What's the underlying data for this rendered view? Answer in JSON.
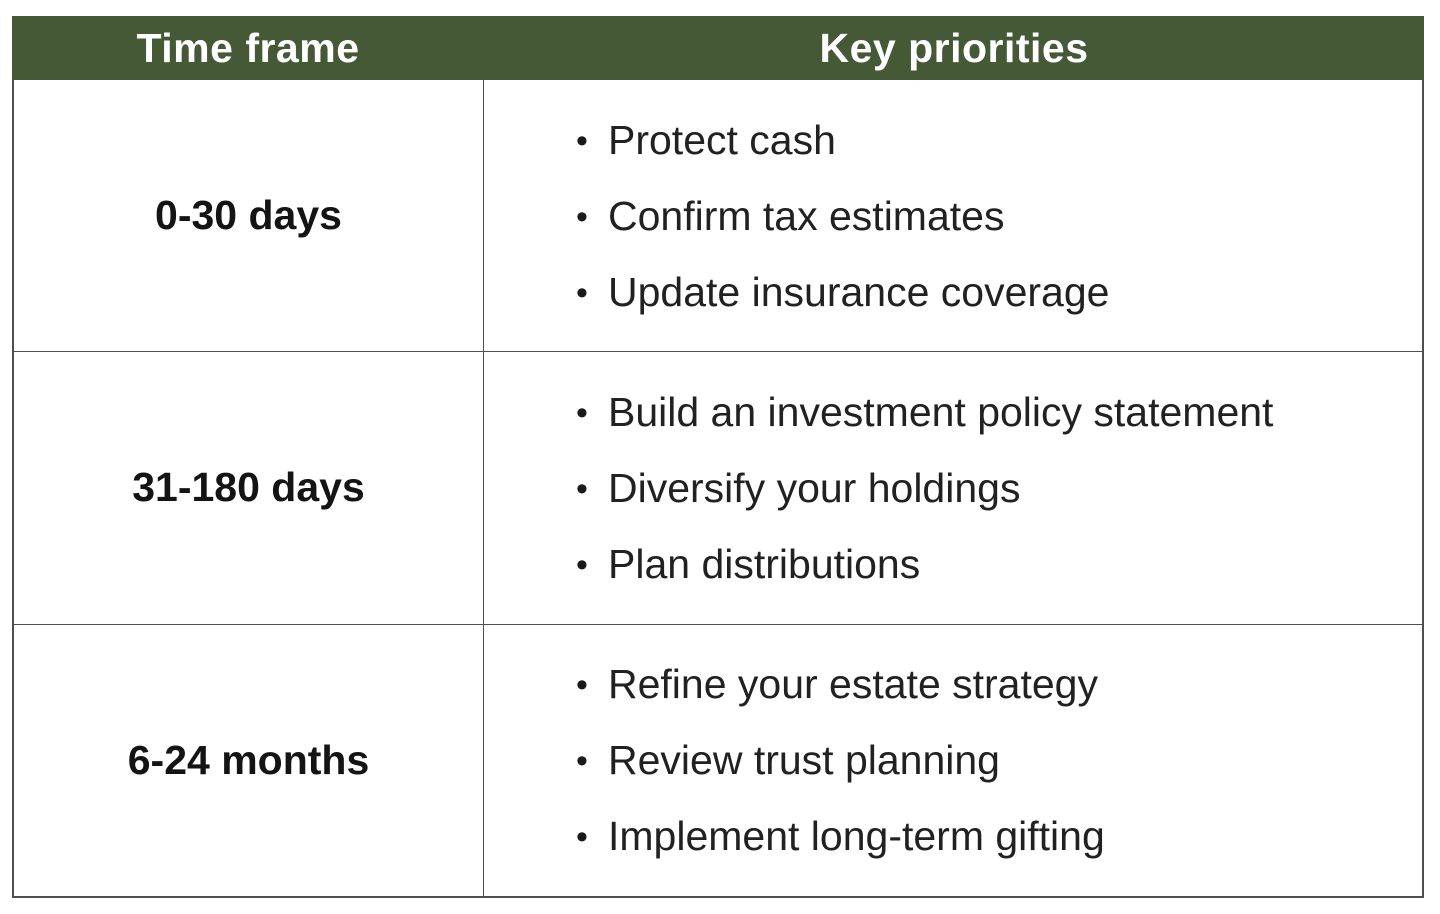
{
  "table": {
    "columns": {
      "time_frame_label": "Time frame",
      "key_priorities_label": "Key priorities"
    },
    "rows": [
      {
        "time_frame": "0-30 days",
        "priorities": [
          "Protect cash",
          "Confirm tax estimates",
          "Update insurance coverage"
        ]
      },
      {
        "time_frame": "31-180 days",
        "priorities": [
          "Build an investment policy statement",
          "Diversify your holdings",
          "Plan distributions"
        ]
      },
      {
        "time_frame": "6-24 months",
        "priorities": [
          "Refine your estate strategy",
          "Review trust planning",
          "Implement long-term gifting"
        ]
      }
    ],
    "colors": {
      "header_bg": "#465936",
      "header_text": "#ffffff",
      "body_text": "#212121",
      "border": "#4f4f4f"
    }
  }
}
